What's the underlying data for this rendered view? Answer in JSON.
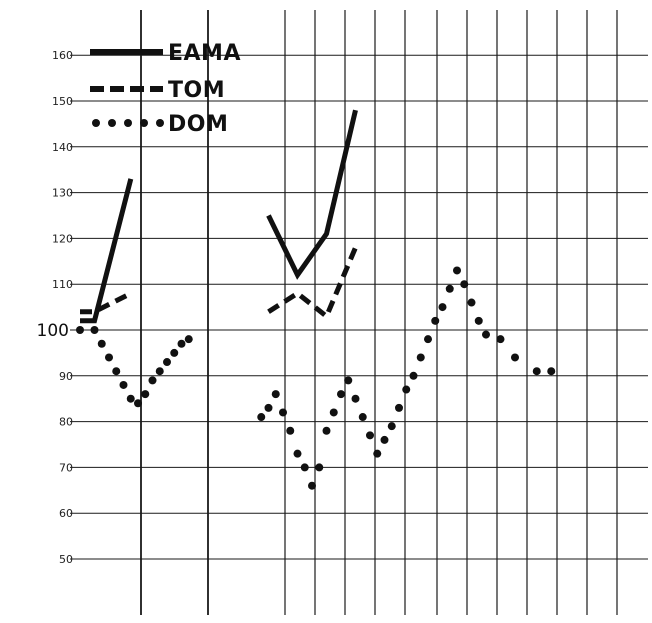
{
  "chart_data": {
    "type": "line",
    "title": "",
    "xlabel": "",
    "ylabel": "",
    "ylim": [
      45,
      167
    ],
    "grid": true,
    "legend_position": "top-left",
    "yticks": [
      "160",
      "150",
      "140",
      "130",
      "120",
      "110",
      "100",
      "90",
      "80",
      "70",
      "60",
      "50"
    ],
    "x": [
      0,
      1,
      2,
      3,
      4,
      5,
      6,
      7,
      8,
      9,
      10,
      11,
      12,
      13,
      14,
      15,
      16,
      17,
      18,
      19,
      20,
      21,
      22,
      23,
      24,
      25,
      26,
      27,
      28,
      29,
      30,
      31,
      32,
      33,
      34,
      35,
      36,
      37,
      38,
      39,
      40,
      41,
      42,
      43,
      44,
      45,
      46,
      47,
      48,
      49,
      50,
      51,
      52,
      53,
      54,
      55,
      56,
      57,
      58,
      59,
      60,
      61,
      62,
      63,
      64,
      65,
      66,
      67,
      68,
      69,
      70,
      71,
      72,
      73,
      74,
      75,
      76,
      77
    ],
    "series": [
      {
        "name": "EAMA",
        "style": "solid",
        "color": "#111111",
        "values": [
          102,
          102,
          102,
          null,
          null,
          null,
          null,
          133,
          null,
          null,
          null,
          null,
          null,
          null,
          null,
          null,
          null,
          null,
          null,
          null,
          null,
          null,
          null,
          null,
          null,
          null,
          125,
          null,
          null,
          null,
          112,
          null,
          null,
          null,
          121,
          null,
          null,
          null,
          148,
          null,
          null,
          null,
          null,
          null,
          null,
          null,
          null,
          null,
          null,
          null,
          null,
          null,
          null,
          null,
          null,
          null,
          null,
          null,
          null,
          null,
          null,
          null,
          null,
          null,
          null,
          null,
          null,
          null,
          null,
          null,
          null,
          null,
          null,
          null,
          null,
          null,
          null,
          null
        ]
      },
      {
        "name": "TOM",
        "style": "dashed",
        "color": "#111111",
        "values": [
          104,
          104,
          104,
          null,
          null,
          null,
          null,
          108,
          null,
          null,
          null,
          null,
          null,
          null,
          null,
          null,
          null,
          null,
          null,
          null,
          null,
          null,
          null,
          null,
          null,
          null,
          104,
          null,
          null,
          null,
          108,
          null,
          null,
          null,
          103,
          null,
          null,
          null,
          118,
          null,
          null,
          null,
          null,
          null,
          null,
          null,
          null,
          null,
          null,
          null,
          null,
          null,
          null,
          null,
          null,
          null,
          null,
          null,
          null,
          null,
          null,
          null,
          null,
          null,
          null,
          null,
          null,
          null,
          null,
          null,
          null,
          null,
          null,
          null,
          null,
          null,
          null,
          null
        ]
      },
      {
        "name": "DOM",
        "style": "dotted",
        "color": "#111111",
        "values": [
          100,
          null,
          100,
          97,
          94,
          91,
          88,
          85,
          84,
          86,
          89,
          91,
          93,
          95,
          97,
          98,
          null,
          null,
          null,
          null,
          null,
          null,
          null,
          null,
          null,
          81,
          83,
          86,
          82,
          78,
          73,
          70,
          66,
          70,
          78,
          82,
          86,
          89,
          85,
          81,
          77,
          73,
          76,
          79,
          83,
          87,
          90,
          94,
          98,
          102,
          105,
          109,
          113,
          110,
          106,
          102,
          99,
          null,
          98,
          null,
          94,
          null,
          null,
          91,
          null,
          91,
          null,
          null,
          null,
          null,
          null,
          null,
          null,
          null,
          null,
          null,
          null,
          null
        ]
      }
    ]
  }
}
